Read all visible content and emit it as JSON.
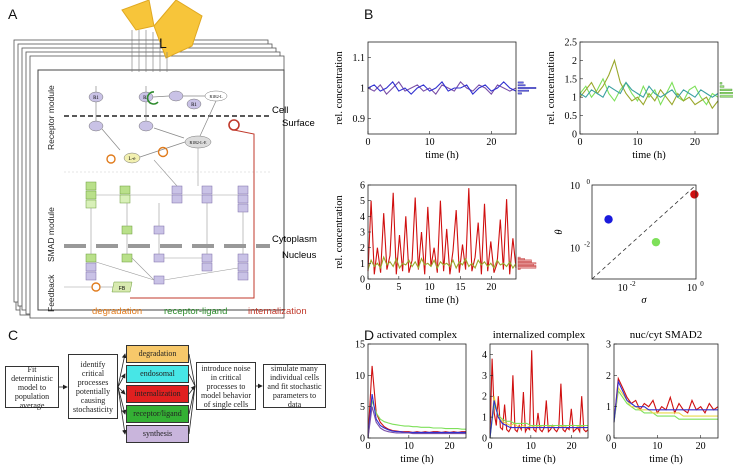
{
  "panels": {
    "a": "A",
    "b": "B",
    "c": "C",
    "d": "D"
  },
  "figure_a": {
    "ligand_label": "L",
    "side_labels": {
      "receptor": "Receptor module",
      "smad": "SMAD module",
      "feedback": "Feedback"
    },
    "right_labels": {
      "cell": "Cell",
      "surface": "Surface",
      "cytoplasm": "Cytoplasm",
      "nucleus": "Nucleus"
    },
    "legend": {
      "degradation": "degradation",
      "receptor_ligand": "receptor-ligand",
      "internalization": "internalization"
    },
    "node_labels": {
      "r1": "R1",
      "r2": "R2",
      "r1b": "R1",
      "r1r2l": "R1R2-L",
      "r1r2li": "R1R2-L-E",
      "le": "L-e",
      "fb": "FB"
    }
  },
  "figure_c": {
    "step1": "Fit deterministic model to population average",
    "step2": "identify critical processes potentially causing stochasticity",
    "processes": [
      {
        "label": "degradation",
        "color": "#f7c86a"
      },
      {
        "label": "endosomal",
        "color": "#47e6e6"
      },
      {
        "label": "internalization",
        "color": "#e02020"
      },
      {
        "label": "receptor/ligand",
        "color": "#34b034"
      },
      {
        "label": "synthesis",
        "color": "#c9b5dc"
      }
    ],
    "step3": "introduce noise in critical processes to model behavior of single cells",
    "step4": "simulate many individual cells and fit stochastic parameters to data"
  },
  "colors": {
    "degradation": "#e07b1c",
    "receptor_ligand": "#2e8b2e",
    "internalization": "#c0392b",
    "blue": "#3030d0",
    "purple": "#7a4fa8",
    "red": "#d01010",
    "green": "#7ee05a",
    "olive": "#9aa82c",
    "yellow": "#e8d84a"
  },
  "chart_data": [
    {
      "id": "b1",
      "type": "line",
      "ylabel": "rel. concentration",
      "xlabel": "time (h)",
      "xlim": [
        0,
        24
      ],
      "ylim": [
        0.85,
        1.15
      ],
      "xticks": [
        0,
        10,
        20
      ],
      "yticks": [
        0.9,
        1,
        1.1
      ],
      "xtick_labels": [
        "0",
        "10",
        "20"
      ],
      "ytick_labels": [
        "0.9",
        "1",
        "1.1"
      ],
      "series": [
        {
          "color": "#7a4fa8",
          "values": [
            1.0,
            0.99,
            1.01,
            0.98,
            1.0,
            1.02,
            0.99,
            1.0,
            1.01,
            0.99,
            1.0,
            0.98,
            1.01,
            1.0,
            0.99,
            1.02,
            1.0,
            0.99,
            1.01,
            1.0,
            0.98,
            1.01,
            1.0,
            0.99,
            1.0
          ]
        },
        {
          "color": "#3030d0",
          "values": [
            1.0,
            1.01,
            0.99,
            1.0,
            1.02,
            0.99,
            1.0,
            0.98,
            1.0,
            1.01,
            0.99,
            1.0,
            1.02,
            0.99,
            1.0,
            1.0,
            1.01,
            0.98,
            1.0,
            1.01,
            0.99,
            1.0,
            1.02,
            1.0,
            0.99
          ]
        }
      ]
    },
    {
      "id": "b2",
      "type": "line",
      "ylabel": "rel. concentration",
      "xlabel": "time (h)",
      "xlim": [
        0,
        24
      ],
      "ylim": [
        0,
        2.5
      ],
      "xticks": [
        0,
        10,
        20
      ],
      "yticks": [
        0,
        0.5,
        1,
        1.5,
        2,
        2.5
      ],
      "xtick_labels": [
        "0",
        "10",
        "20"
      ],
      "ytick_labels": [
        "0",
        "0.5",
        "1",
        "1.5",
        "2",
        "2.5"
      ],
      "series": [
        {
          "color": "#7ee05a",
          "values": [
            1.1,
            1.3,
            1.0,
            1.2,
            1.5,
            1.1,
            0.9,
            1.2,
            1.4,
            1.1,
            0.9,
            1.3,
            1.0,
            1.2,
            0.8,
            1.1,
            1.4,
            1.0,
            0.9,
            1.2,
            1.3,
            1.0,
            0.8,
            1.1,
            1.0
          ]
        },
        {
          "color": "#9aa82c",
          "values": [
            1.0,
            1.2,
            1.4,
            1.1,
            1.3,
            1.6,
            2.0,
            1.4,
            1.1,
            0.9,
            1.0,
            0.8,
            1.1,
            0.9,
            1.2,
            1.0,
            0.8,
            1.1,
            0.9,
            1.0,
            0.8,
            0.9,
            1.0,
            0.7,
            0.9
          ]
        },
        {
          "color": "#3aa0a0",
          "values": [
            1.1,
            1.0,
            1.2,
            1.1,
            1.0,
            1.3,
            1.2,
            1.1,
            1.4,
            1.2,
            1.1,
            1.0,
            1.3,
            1.1,
            1.0,
            1.1,
            1.2,
            1.0,
            1.2,
            1.1,
            1.0,
            1.2,
            1.1,
            1.0,
            1.1
          ]
        }
      ]
    },
    {
      "id": "b3",
      "type": "line",
      "ylabel": "rel. concentration",
      "xlabel": "time (h)",
      "xlim": [
        0,
        24
      ],
      "ylim": [
        0,
        6
      ],
      "xticks": [
        0,
        5,
        10,
        15,
        20
      ],
      "yticks": [
        0,
        1,
        2,
        3,
        4,
        5,
        6
      ],
      "xtick_labels": [
        "0",
        "5",
        "10",
        "15",
        "20"
      ],
      "ytick_labels": [
        "0",
        "1",
        "2",
        "3",
        "4",
        "5",
        "6"
      ],
      "series": [
        {
          "color": "#d01010",
          "values": [
            0.5,
            5.0,
            0.3,
            2.0,
            0.4,
            4.2,
            0.6,
            1.5,
            5.5,
            0.3,
            2.8,
            0.5,
            4.0,
            0.4,
            1.2,
            5.2,
            0.6,
            3.0,
            0.3,
            4.6,
            0.8,
            2.0,
            0.4,
            5.0,
            0.5,
            3.2,
            0.3,
            1.8,
            4.4,
            0.4,
            2.2,
            0.6,
            5.8,
            0.5,
            1.4,
            3.6,
            0.3,
            4.8,
            0.5,
            2.4,
            0.4,
            1.0,
            3.8,
            0.6,
            5.1,
            0.3,
            2.6,
            0.7
          ]
        },
        {
          "color": "#9aa82c",
          "values": [
            0.6,
            1.2,
            0.8,
            1.0,
            0.7,
            1.4,
            0.9,
            1.1,
            0.8,
            1.3,
            0.7,
            1.0,
            0.9,
            1.2,
            0.8,
            1.1,
            0.7,
            1.3,
            0.9,
            1.0,
            0.8,
            1.2,
            0.7,
            1.1,
            0.9,
            1.0,
            0.8,
            1.2,
            0.7,
            1.1,
            0.9,
            1.3,
            0.8,
            1.0,
            0.7,
            1.2,
            0.9,
            1.1,
            0.8,
            1.0,
            0.7,
            1.2,
            0.9,
            1.0,
            0.8,
            1.1,
            0.7,
            1.0
          ]
        }
      ]
    },
    {
      "id": "b4",
      "type": "scatter",
      "xlabel": "σ",
      "ylabel": "θ",
      "xscale": "log",
      "yscale": "log",
      "xlim": [
        0.001,
        1
      ],
      "ylim": [
        0.001,
        1
      ],
      "xtick_labels": [
        "10",
        "10"
      ],
      "xtick_exps": [
        "-2",
        "0"
      ],
      "ytick_labels": [
        "10",
        "10"
      ],
      "ytick_exps": [
        "-2",
        "0"
      ],
      "points": [
        {
          "x": 0.003,
          "y": 0.08,
          "color": "#1a1adc"
        },
        {
          "x": 0.07,
          "y": 0.015,
          "color": "#7ee05a"
        },
        {
          "x": 0.9,
          "y": 0.5,
          "color": "#d01010"
        }
      ]
    },
    {
      "id": "d1",
      "type": "line",
      "title": "activated complex",
      "xlabel": "time (h)",
      "xlim": [
        0,
        24
      ],
      "ylim": [
        0,
        15
      ],
      "xticks": [
        0,
        10,
        20
      ],
      "yticks": [
        0,
        5,
        10,
        15
      ],
      "xtick_labels": [
        "0",
        "10",
        "20"
      ],
      "ytick_labels": [
        "0",
        "5",
        "10",
        "15"
      ],
      "series": [
        {
          "color": "#d01010",
          "values": [
            0,
            11.5,
            4,
            2.5,
            1.8,
            1.4,
            1.2,
            1.1,
            1.0,
            1.0,
            1.0,
            0.9,
            1.0,
            0.9,
            1.0,
            0.9,
            1.0,
            1.0,
            0.9,
            1.0,
            0.9,
            1.0,
            0.9,
            1.0,
            1.0
          ]
        },
        {
          "color": "#7ee05a",
          "values": [
            0,
            6,
            4,
            3,
            2.6,
            2.4,
            2.2,
            2.1,
            2.0,
            1.9,
            1.9,
            1.8,
            1.8,
            1.7,
            1.7,
            1.7,
            1.6,
            1.6,
            1.6,
            1.5,
            1.5,
            1.5,
            1.5,
            1.4,
            1.4
          ]
        },
        {
          "color": "#3030d0",
          "values": [
            0,
            7,
            3,
            2,
            1.6,
            1.3,
            1.1,
            1.0,
            1.0,
            0.9,
            0.9,
            0.9,
            0.9,
            0.9,
            0.9,
            0.9,
            0.9,
            0.9,
            0.9,
            0.9,
            0.9,
            0.9,
            0.9,
            0.9,
            0.9
          ]
        },
        {
          "color": "#7a4fa8",
          "values": [
            0,
            5,
            2.5,
            1.6,
            1.2,
            1.0,
            0.9,
            0.8,
            0.8,
            0.8,
            0.8,
            0.7,
            0.7,
            0.7,
            0.7,
            0.7,
            0.7,
            0.7,
            0.7,
            0.7,
            0.7,
            0.7,
            0.7,
            0.7,
            0.7
          ]
        }
      ]
    },
    {
      "id": "d2",
      "type": "line",
      "title": "internalized complex",
      "xlabel": "time (h)",
      "xlim": [
        0,
        24
      ],
      "ylim": [
        0,
        4.5
      ],
      "xticks": [
        0,
        10,
        20
      ],
      "yticks": [
        0,
        1,
        2,
        3,
        4
      ],
      "xtick_labels": [
        "0",
        "10",
        "20"
      ],
      "ytick_labels": [
        "0",
        "1",
        "2",
        "3",
        "4"
      ],
      "series": [
        {
          "color": "#d01010",
          "values": [
            0,
            3.8,
            1.2,
            0.6,
            2.0,
            0.5,
            0.4,
            1.6,
            0.4,
            0.3,
            0.5,
            3.0,
            0.4,
            0.3,
            0.6,
            0.4,
            2.2,
            0.3,
            0.5,
            0.4,
            4.2,
            0.4,
            0.3,
            1.2,
            0.4,
            0.3,
            0.5,
            1.8,
            0.3,
            0.4,
            0.6,
            0.4,
            0.3,
            0.5,
            2.6,
            0.4,
            0.3,
            0.5,
            0.4,
            1.4,
            0.3,
            0.4,
            0.5,
            0.3,
            2.0,
            0.4,
            0.3,
            0.4
          ]
        },
        {
          "color": "#e8d84a",
          "values": [
            0,
            2.0,
            1.0,
            0.8,
            0.7,
            0.6,
            0.7,
            0.5,
            0.6,
            0.5,
            0.6,
            0.5,
            0.6,
            0.5,
            0.5,
            0.6,
            0.5,
            0.5,
            0.6,
            0.5,
            0.5,
            0.5,
            0.6,
            0.5,
            0.5
          ]
        },
        {
          "color": "#7ee05a",
          "values": [
            0,
            1.6,
            1.1,
            0.9,
            0.8,
            0.8,
            0.7,
            0.7,
            0.7,
            0.7,
            0.6,
            0.6,
            0.6,
            0.6,
            0.6,
            0.6,
            0.6,
            0.6,
            0.6,
            0.6,
            0.6,
            0.6,
            0.6,
            0.6,
            0.6
          ]
        },
        {
          "color": "#3030d0",
          "values": [
            0,
            1.8,
            1.0,
            0.7,
            0.6,
            0.5,
            0.5,
            0.5,
            0.5,
            0.5,
            0.5,
            0.5,
            0.5,
            0.5,
            0.5,
            0.5,
            0.5,
            0.5,
            0.5,
            0.5,
            0.5,
            0.5,
            0.5,
            0.5,
            0.5
          ]
        }
      ]
    },
    {
      "id": "d3",
      "type": "line",
      "title": "nuc/cyt SMAD2",
      "xlabel": "time (h)",
      "xlim": [
        0,
        24
      ],
      "ylim": [
        0,
        3
      ],
      "xticks": [
        0,
        10,
        20
      ],
      "yticks": [
        0,
        1,
        2,
        3
      ],
      "xtick_labels": [
        "0",
        "10",
        "20"
      ],
      "ytick_labels": [
        "0",
        "1",
        "2",
        "3"
      ],
      "series": [
        {
          "color": "#d01010",
          "values": [
            0.5,
            1.9,
            1.6,
            1.3,
            1.1,
            1.2,
            0.9,
            1.1,
            1.0,
            1.2,
            0.8,
            1.0,
            0.9,
            1.3,
            0.8,
            1.1,
            0.9,
            0.8,
            1.2,
            0.9,
            1.0,
            0.8,
            1.1,
            0.9,
            1.0
          ]
        },
        {
          "color": "#7ee05a",
          "values": [
            0.5,
            1.5,
            1.3,
            1.1,
            1.0,
            0.9,
            0.9,
            0.8,
            0.8,
            0.8,
            0.7,
            0.7,
            0.7,
            0.7,
            0.7,
            0.6,
            0.6,
            0.6,
            0.6,
            0.6,
            0.6,
            0.6,
            0.6,
            0.6,
            0.6
          ]
        },
        {
          "color": "#e8d84a",
          "values": [
            0.5,
            1.6,
            1.4,
            1.2,
            1.0,
            1.0,
            0.9,
            0.9,
            0.9,
            0.8,
            0.8,
            0.8,
            0.8,
            0.8,
            0.8,
            0.8,
            0.7,
            0.7,
            0.7,
            0.7,
            0.7,
            0.7,
            0.7,
            0.7,
            0.7
          ]
        },
        {
          "color": "#3030d0",
          "values": [
            0.5,
            1.8,
            1.5,
            1.2,
            1.1,
            1.0,
            1.0,
            1.0,
            0.9,
            0.9,
            0.9,
            0.9,
            0.9,
            0.9,
            0.9,
            0.9,
            0.9,
            0.9,
            0.9,
            0.9,
            0.9,
            0.9,
            0.9,
            0.9,
            0.9
          ]
        }
      ]
    }
  ]
}
